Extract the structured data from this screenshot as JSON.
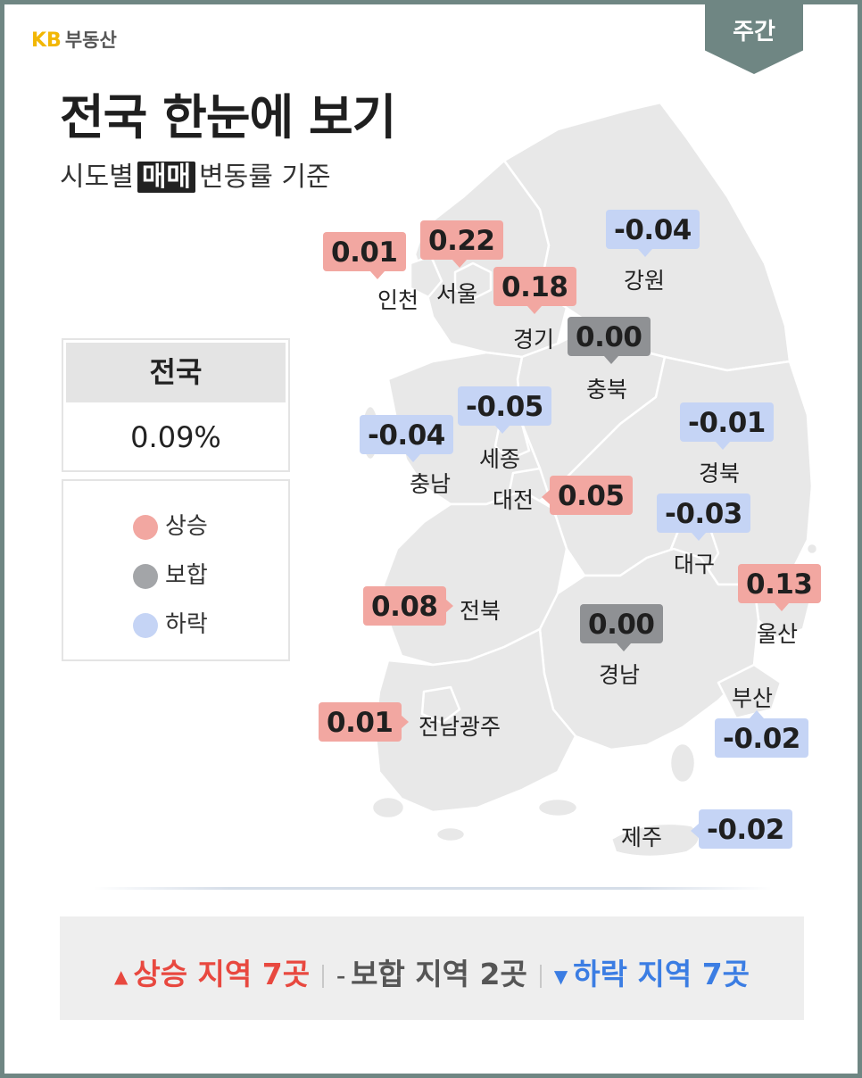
{
  "brand": {
    "kb": "KB",
    "name": "부동산"
  },
  "period_tab": "주간",
  "title": "전국 한눈에 보기",
  "subtitle": {
    "before": "시도별",
    "highlight": "매매",
    "after": "변동률 기준"
  },
  "national": {
    "label": "전국",
    "value": "0.09%"
  },
  "legend": [
    {
      "label": "상승",
      "color": "#f2a7a1"
    },
    {
      "label": "보합",
      "color": "#a3a5a8"
    },
    {
      "label": "하락",
      "color": "#c5d4f5"
    }
  ],
  "colors": {
    "up": "#f2a7a1",
    "flat": "#8f9194",
    "down": "#c5d4f5",
    "map": "#e8e8e8",
    "frame": "#6f8683"
  },
  "regions": [
    {
      "name": "인천",
      "value": "0.01",
      "status": "up"
    },
    {
      "name": "서울",
      "value": "0.22",
      "status": "up"
    },
    {
      "name": "경기",
      "value": "0.18",
      "status": "up"
    },
    {
      "name": "강원",
      "value": "-0.04",
      "status": "down"
    },
    {
      "name": "충북",
      "value": "0.00",
      "status": "flat"
    },
    {
      "name": "세종",
      "value": "-0.05",
      "status": "down"
    },
    {
      "name": "충남",
      "value": "-0.04",
      "status": "down"
    },
    {
      "name": "대전",
      "value": "0.05",
      "status": "up"
    },
    {
      "name": "경북",
      "value": "-0.01",
      "status": "down"
    },
    {
      "name": "대구",
      "value": "-0.03",
      "status": "down"
    },
    {
      "name": "울산",
      "value": "0.13",
      "status": "up"
    },
    {
      "name": "전북",
      "value": "0.08",
      "status": "up"
    },
    {
      "name": "경남",
      "value": "0.00",
      "status": "flat"
    },
    {
      "name": "부산",
      "value": "-0.02",
      "status": "down"
    },
    {
      "name": "전남광주",
      "value": "0.01",
      "status": "up"
    },
    {
      "name": "제주",
      "value": "-0.02",
      "status": "down"
    }
  ],
  "summary": {
    "up_symbol": "▲",
    "up_text": "상승 지역",
    "up_count": "7곳",
    "flat_symbol": "–",
    "flat_text": "보합 지역",
    "flat_count": "2곳",
    "down_symbol": "▼",
    "down_text": "하락 지역",
    "down_count": "7곳"
  }
}
